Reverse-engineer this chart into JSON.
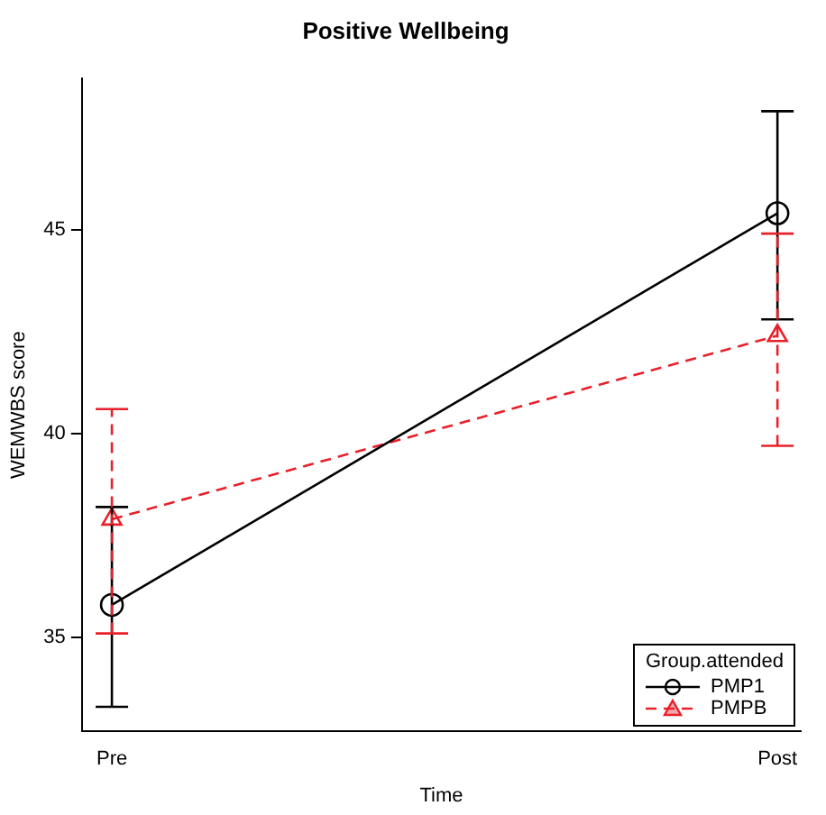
{
  "chart_data": {
    "type": "line",
    "title": "Positive Wellbeing",
    "xlabel": "Time",
    "ylabel": "WEMWBS score",
    "categories": [
      "Pre",
      "Post"
    ],
    "series": [
      {
        "name": "PMP1",
        "color": "#000000",
        "values": [
          35.8,
          45.4
        ],
        "errors": [
          [
            33.3,
            38.2
          ],
          [
            42.8,
            47.9
          ]
        ],
        "marker": "circle",
        "line_style": "solid"
      },
      {
        "name": "PMPB",
        "color": "#e8202a",
        "values": [
          37.9,
          42.4
        ],
        "errors": [
          [
            35.1,
            40.6
          ],
          [
            39.7,
            44.9
          ]
        ],
        "marker": "triangle",
        "line_style": "dashed"
      }
    ],
    "ylim": [
      32.7,
      48.7
    ],
    "yticks": [
      35,
      40,
      45
    ],
    "grid": false,
    "legend": "bottom right",
    "legend_title": "Group.attended"
  }
}
